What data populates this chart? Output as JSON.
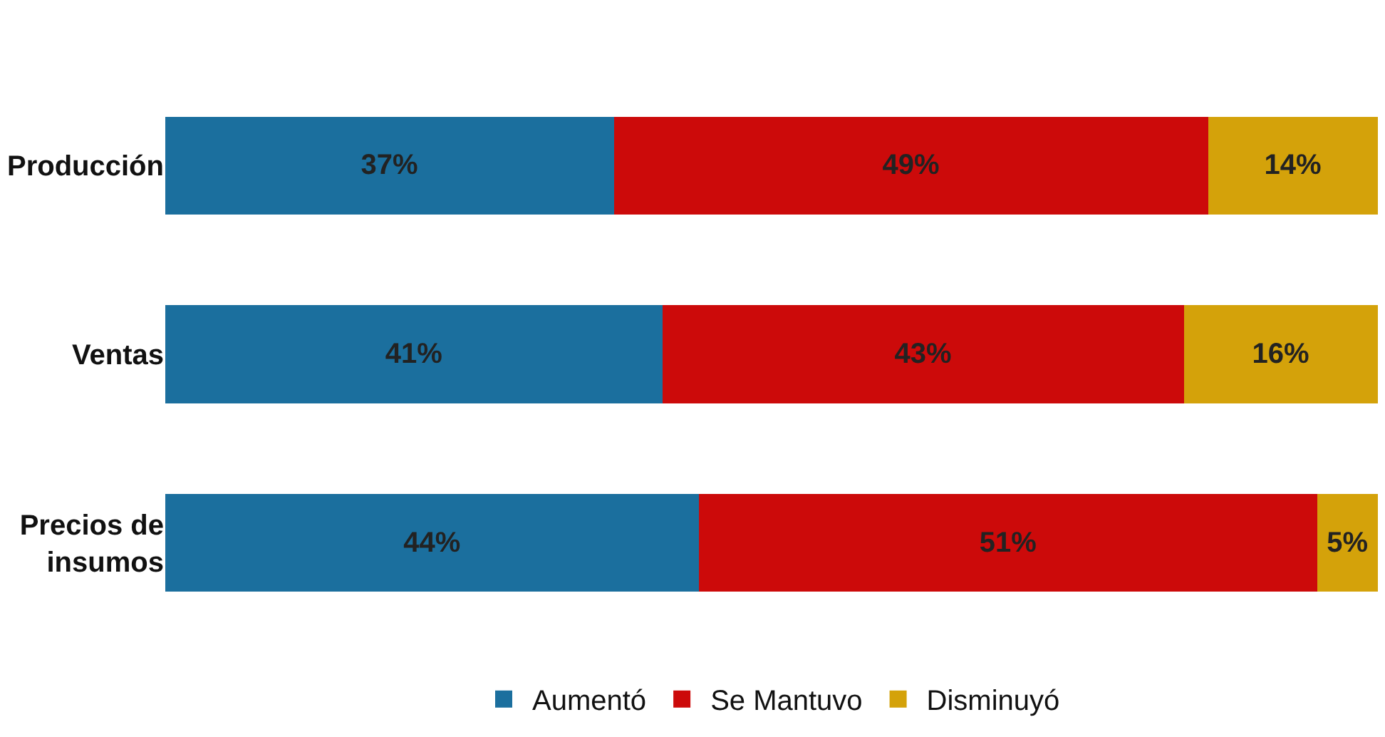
{
  "chart_data": {
    "type": "bar",
    "orientation": "horizontal",
    "stacked": true,
    "categories": [
      "Producción",
      "Ventas",
      "Precios de insumos"
    ],
    "series": [
      {
        "name": "Aumentó",
        "color": "#1b6f9e",
        "values": [
          37,
          41,
          44
        ],
        "value_labels": [
          "37%",
          "41%",
          "44%"
        ]
      },
      {
        "name": "Se Mantuvo",
        "color": "#cc0a0a",
        "values": [
          49,
          43,
          51
        ],
        "value_labels": [
          "49%",
          "43%",
          "51%"
        ]
      },
      {
        "name": "Disminuyó",
        "color": "#d4a20a",
        "values": [
          14,
          16,
          5
        ],
        "value_labels": [
          "14%",
          "16%",
          "5%"
        ]
      }
    ],
    "xlim": [
      0,
      100
    ],
    "tick_labels": "y",
    "legend": "bottom"
  }
}
